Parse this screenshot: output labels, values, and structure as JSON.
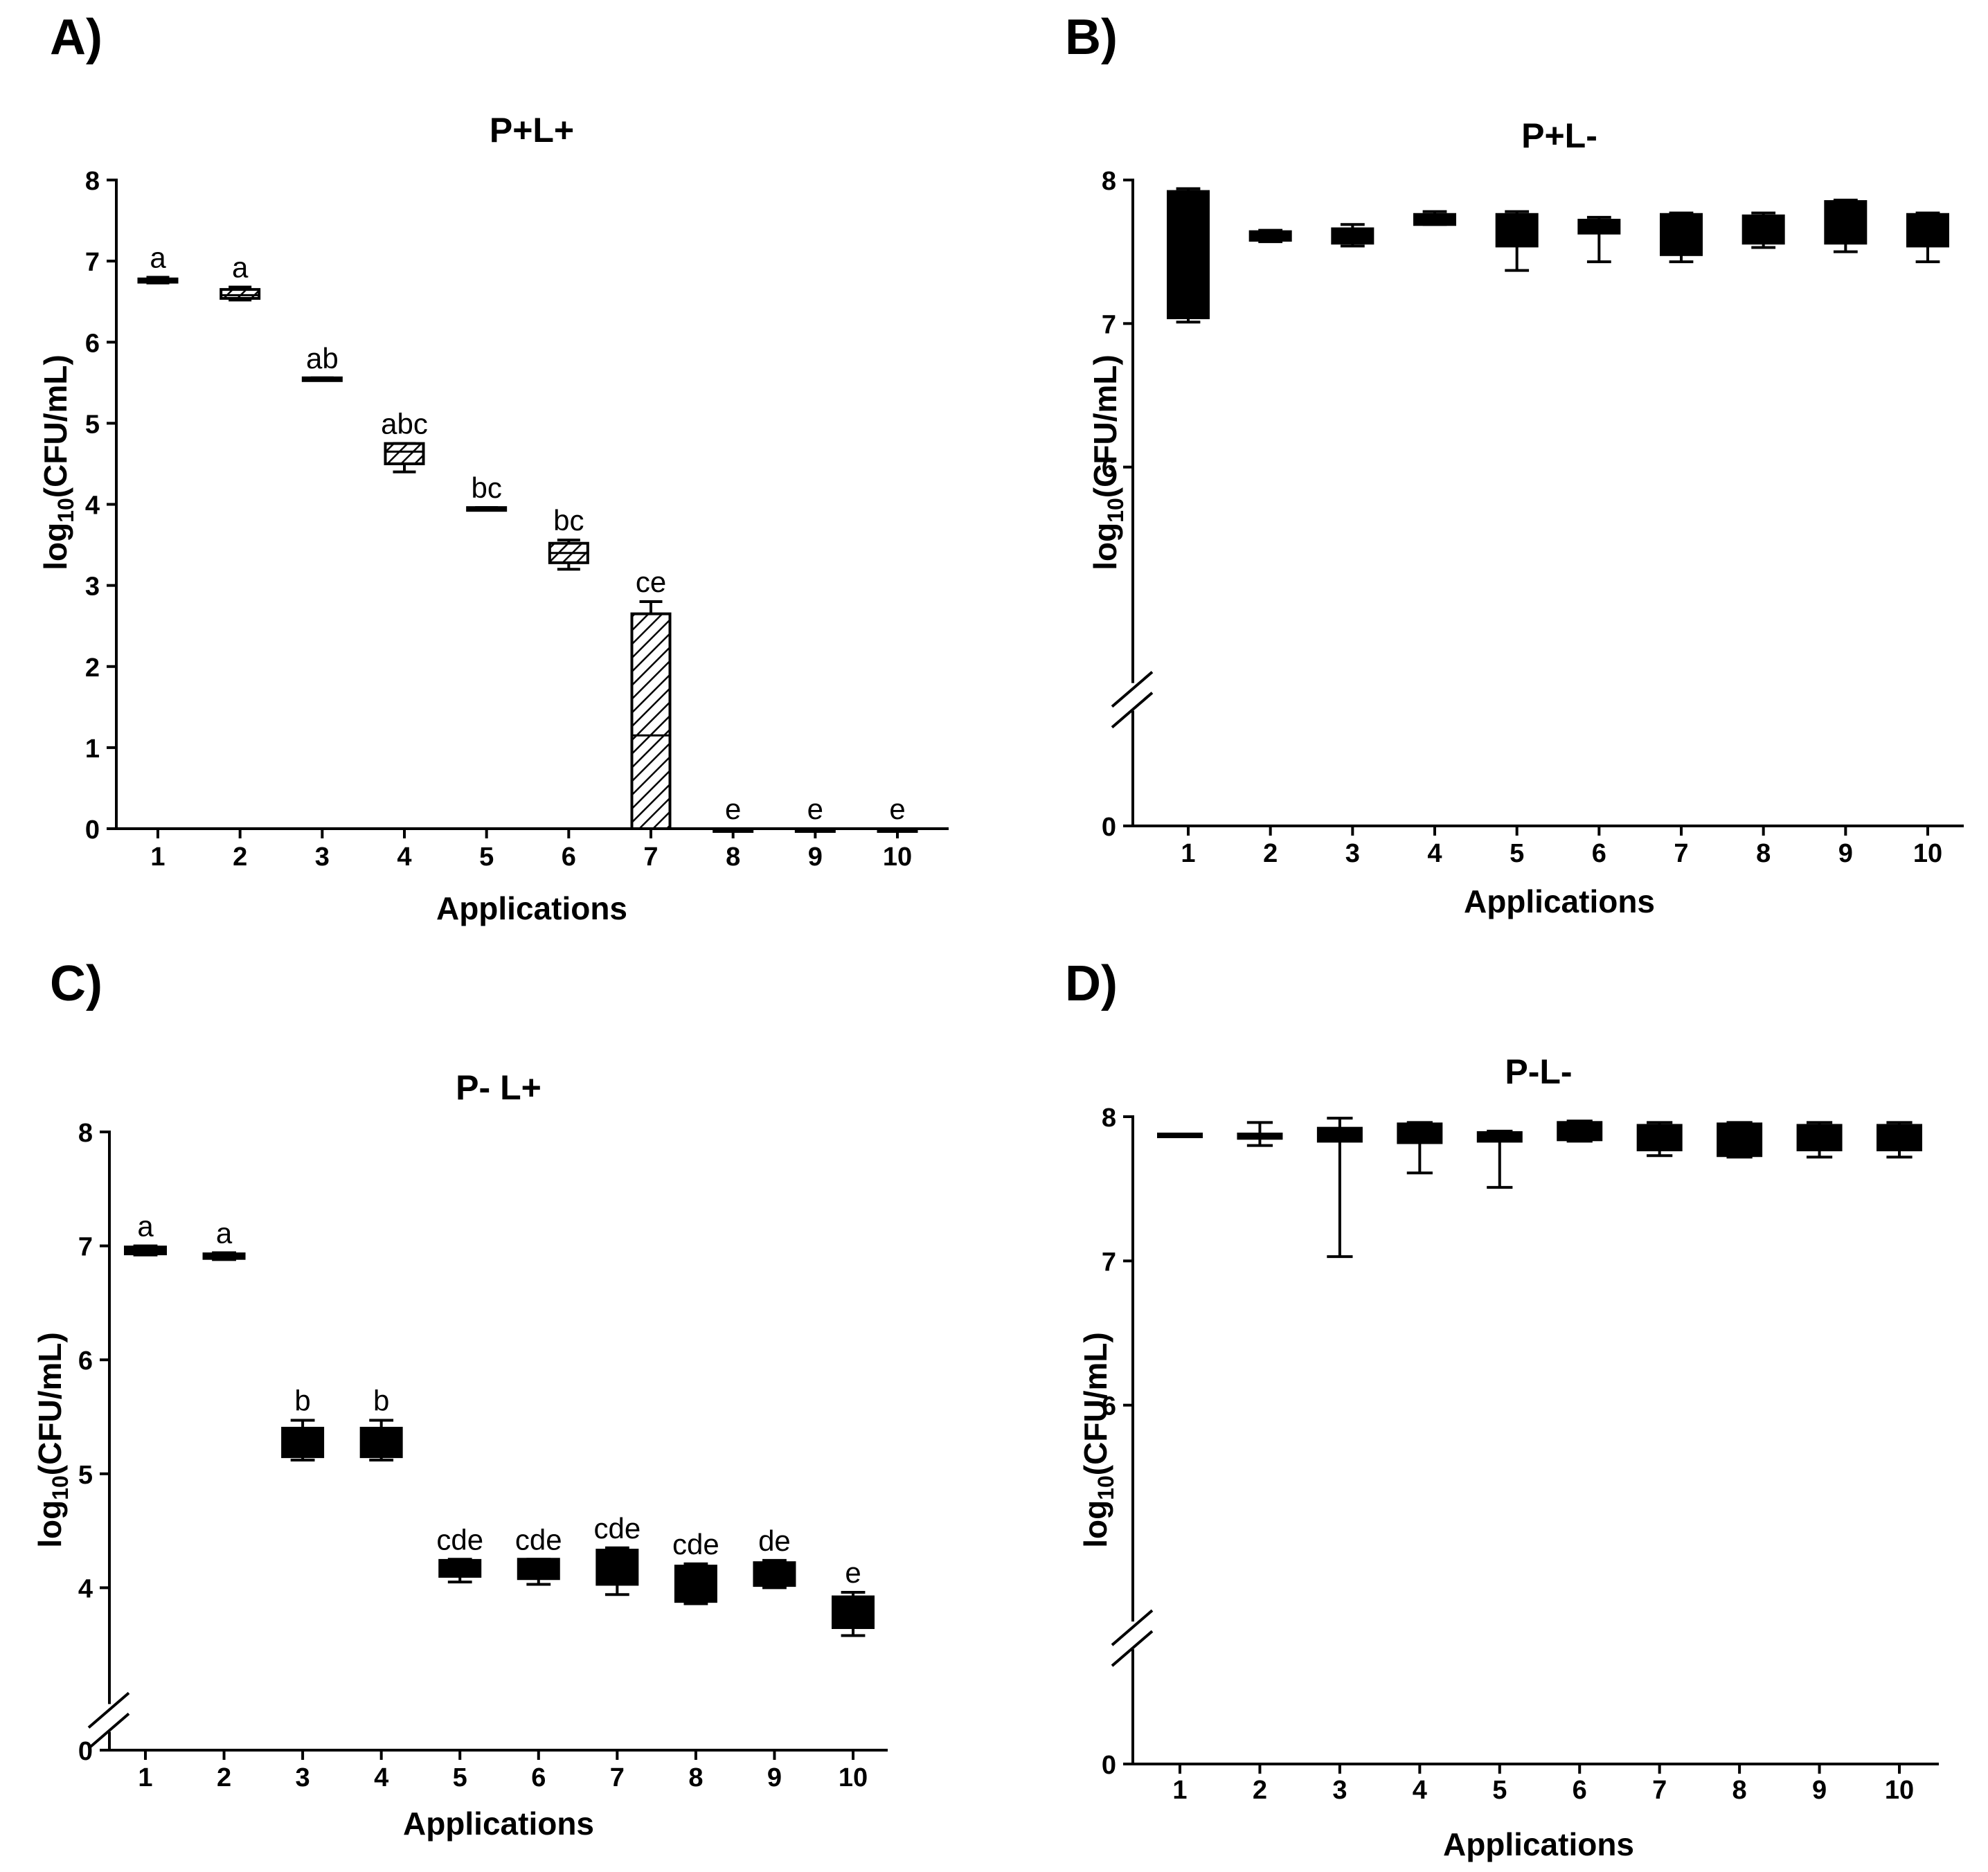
{
  "figure": {
    "background": "#ffffff",
    "ink": "#000000"
  },
  "chart_data": [
    {
      "panel": "A)",
      "type": "box",
      "title": "P+L+",
      "xlabel": "Applications",
      "ylabel_base": "log",
      "ylabel_sub": "10",
      "ylabel_rest": "(CFU/mL)",
      "ylim": [
        0,
        8
      ],
      "yticks": [
        "0",
        "1",
        "2",
        "3",
        "4",
        "5",
        "6",
        "7",
        "8"
      ],
      "axis_break": false,
      "fill": "hatched",
      "categories": [
        "1",
        "2",
        "3",
        "4",
        "5",
        "6",
        "7",
        "8",
        "9",
        "10"
      ],
      "boxes": [
        {
          "min": 6.73,
          "q1": 6.74,
          "median": 6.76,
          "q3": 6.78,
          "max": 6.8,
          "label": "a"
        },
        {
          "min": 6.52,
          "q1": 6.54,
          "median": 6.58,
          "q3": 6.65,
          "max": 6.68,
          "label": "a"
        },
        {
          "min": 5.54,
          "q1": 5.54,
          "median": 5.55,
          "q3": 5.56,
          "max": 5.56,
          "label": "ab"
        },
        {
          "min": 4.4,
          "q1": 4.5,
          "median": 4.65,
          "q3": 4.75,
          "max": 4.75,
          "label": "abc"
        },
        {
          "min": 3.95,
          "q1": 3.95,
          "median": 3.95,
          "q3": 3.96,
          "max": 3.96,
          "label": "bc"
        },
        {
          "min": 3.2,
          "q1": 3.28,
          "median": 3.4,
          "q3": 3.52,
          "max": 3.56,
          "label": "bc"
        },
        {
          "min": 0.0,
          "q1": 0.0,
          "median": 1.15,
          "q3": 2.65,
          "max": 2.8,
          "label": "ce"
        },
        {
          "min": 0.0,
          "q1": 0.0,
          "median": 0.0,
          "q3": 0.0,
          "max": 0.0,
          "label": "e"
        },
        {
          "min": 0.0,
          "q1": 0.0,
          "median": 0.0,
          "q3": 0.0,
          "max": 0.0,
          "label": "e"
        },
        {
          "min": 0.0,
          "q1": 0.0,
          "median": 0.0,
          "q3": 0.0,
          "max": 0.0,
          "label": "e"
        }
      ]
    },
    {
      "panel": "B)",
      "type": "box",
      "title": "P+L-",
      "xlabel": "Applications",
      "ylabel_base": "log",
      "ylabel_sub": "10",
      "ylabel_rest": "(CFU/mL)",
      "ylim": [
        5,
        8
      ],
      "yticks": [
        "6",
        "7",
        "8"
      ],
      "axis_break": true,
      "break_zero_label": "0",
      "fill": "solid",
      "categories": [
        "1",
        "2",
        "3",
        "4",
        "5",
        "6",
        "7",
        "8",
        "9",
        "10"
      ],
      "boxes": [
        {
          "min": 7.01,
          "q1": 7.04,
          "median": 7.5,
          "q3": 7.92,
          "max": 7.94
        },
        {
          "min": 7.57,
          "q1": 7.58,
          "median": 7.62,
          "q3": 7.64,
          "max": 7.65
        },
        {
          "min": 7.54,
          "q1": 7.56,
          "median": 7.6,
          "q3": 7.66,
          "max": 7.69
        },
        {
          "min": 7.69,
          "q1": 7.69,
          "median": 7.72,
          "q3": 7.76,
          "max": 7.78
        },
        {
          "min": 7.37,
          "q1": 7.54,
          "median": 7.65,
          "q3": 7.76,
          "max": 7.78
        },
        {
          "min": 7.43,
          "q1": 7.63,
          "median": 7.68,
          "q3": 7.72,
          "max": 7.74
        },
        {
          "min": 7.43,
          "q1": 7.48,
          "median": 7.62,
          "q3": 7.76,
          "max": 7.77
        },
        {
          "min": 7.53,
          "q1": 7.56,
          "median": 7.66,
          "q3": 7.75,
          "max": 7.77
        },
        {
          "min": 7.5,
          "q1": 7.56,
          "median": 7.72,
          "q3": 7.85,
          "max": 7.86
        },
        {
          "min": 7.43,
          "q1": 7.54,
          "median": 7.66,
          "q3": 7.76,
          "max": 7.77
        }
      ]
    },
    {
      "panel": "C)",
      "type": "box",
      "title": "P- L+",
      "xlabel": "Applications",
      "ylabel_base": "log",
      "ylabel_sub": "10",
      "ylabel_rest": "(CFU/mL)",
      "ylim": [
        3,
        8
      ],
      "yticks": [
        "4",
        "5",
        "6",
        "7",
        "8"
      ],
      "axis_break": true,
      "break_zero_label": "0",
      "fill": "solid",
      "categories": [
        "1",
        "2",
        "3",
        "4",
        "5",
        "6",
        "7",
        "8",
        "9",
        "10"
      ],
      "boxes": [
        {
          "min": 6.92,
          "q1": 6.93,
          "median": 6.96,
          "q3": 6.99,
          "max": 7.0,
          "label": "a"
        },
        {
          "min": 6.88,
          "q1": 6.89,
          "median": 6.91,
          "q3": 6.93,
          "max": 6.94,
          "label": "a"
        },
        {
          "min": 5.12,
          "q1": 5.15,
          "median": 5.28,
          "q3": 5.4,
          "max": 5.47,
          "label": "b"
        },
        {
          "min": 5.12,
          "q1": 5.15,
          "median": 5.28,
          "q3": 5.4,
          "max": 5.47,
          "label": "b"
        },
        {
          "min": 4.05,
          "q1": 4.1,
          "median": 4.16,
          "q3": 4.24,
          "max": 4.25,
          "label": "cde"
        },
        {
          "min": 4.03,
          "q1": 4.08,
          "median": 4.16,
          "q3": 4.25,
          "max": 4.25,
          "label": "cde"
        },
        {
          "min": 3.94,
          "q1": 4.03,
          "median": 4.18,
          "q3": 4.33,
          "max": 4.35,
          "label": "cde"
        },
        {
          "min": 3.86,
          "q1": 3.88,
          "median": 4.04,
          "q3": 4.19,
          "max": 4.21,
          "label": "cde"
        },
        {
          "min": 4.0,
          "q1": 4.02,
          "median": 4.12,
          "q3": 4.22,
          "max": 4.24,
          "label": "de"
        },
        {
          "min": 3.58,
          "q1": 3.65,
          "median": 3.8,
          "q3": 3.92,
          "max": 3.96,
          "label": "e"
        }
      ]
    },
    {
      "panel": "D)",
      "type": "box",
      "title": "P-L-",
      "xlabel": "Applications",
      "ylabel_base": "log",
      "ylabel_sub": "10",
      "ylabel_rest": "(CFU/mL)",
      "ylim": [
        5,
        8
      ],
      "yticks": [
        "6",
        "7",
        "8"
      ],
      "axis_break": true,
      "break_zero_label": "0",
      "fill": "solid",
      "categories": [
        "1",
        "2",
        "3",
        "4",
        "5",
        "6",
        "7",
        "8",
        "9",
        "10"
      ],
      "boxes": [
        {
          "min": 7.88,
          "q1": 7.88,
          "median": 7.88,
          "q3": 7.88,
          "max": 7.88
        },
        {
          "min": 7.8,
          "q1": 7.85,
          "median": 7.87,
          "q3": 7.88,
          "max": 7.96
        },
        {
          "min": 7.03,
          "q1": 7.83,
          "median": 7.87,
          "q3": 7.92,
          "max": 7.99
        },
        {
          "min": 7.61,
          "q1": 7.82,
          "median": 7.88,
          "q3": 7.95,
          "max": 7.96
        },
        {
          "min": 7.51,
          "q1": 7.83,
          "median": 7.86,
          "q3": 7.89,
          "max": 7.9
        },
        {
          "min": 7.83,
          "q1": 7.84,
          "median": 7.9,
          "q3": 7.96,
          "max": 7.97
        },
        {
          "min": 7.73,
          "q1": 7.77,
          "median": 7.86,
          "q3": 7.94,
          "max": 7.96
        },
        {
          "min": 7.72,
          "q1": 7.73,
          "median": 7.84,
          "q3": 7.95,
          "max": 7.96
        },
        {
          "min": 7.72,
          "q1": 7.77,
          "median": 7.86,
          "q3": 7.94,
          "max": 7.96
        },
        {
          "min": 7.72,
          "q1": 7.77,
          "median": 7.86,
          "q3": 7.94,
          "max": 7.96
        }
      ]
    }
  ]
}
